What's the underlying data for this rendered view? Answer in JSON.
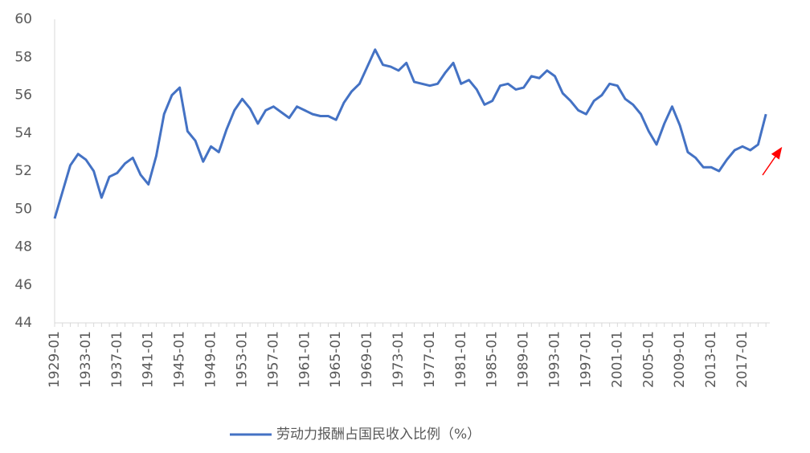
{
  "chart_data": {
    "type": "line",
    "categories": [
      "1929-01",
      null,
      null,
      null,
      "1933-01",
      null,
      null,
      null,
      "1937-01",
      null,
      null,
      null,
      "1941-01",
      null,
      null,
      null,
      "1945-01",
      null,
      null,
      null,
      "1949-01",
      null,
      null,
      null,
      "1953-01",
      null,
      null,
      null,
      "1957-01",
      null,
      null,
      null,
      "1961-01",
      null,
      null,
      null,
      "1965-01",
      null,
      null,
      null,
      "1969-01",
      null,
      null,
      null,
      "1973-01",
      null,
      null,
      null,
      "1977-01",
      null,
      null,
      null,
      "1981-01",
      null,
      null,
      null,
      "1985-01",
      null,
      null,
      null,
      "1989-01",
      null,
      null,
      null,
      "1993-01",
      null,
      null,
      null,
      "1997-01",
      null,
      null,
      null,
      "2001-01",
      null,
      null,
      null,
      "2005-01",
      null,
      null,
      null,
      "2009-01",
      null,
      null,
      null,
      "2013-01",
      null,
      null,
      null,
      "2017-01",
      null,
      null,
      null
    ],
    "series": [
      {
        "name": "劳动力报酬占国民收入比例（%）",
        "color": "#4472c4",
        "values": [
          49.5,
          50.9,
          52.3,
          52.9,
          52.6,
          52.0,
          50.6,
          51.7,
          51.9,
          52.4,
          52.7,
          51.8,
          51.3,
          52.8,
          55.0,
          56.0,
          56.4,
          54.1,
          53.6,
          52.5,
          53.3,
          53.0,
          54.2,
          55.2,
          55.8,
          55.3,
          54.5,
          55.2,
          55.4,
          55.1,
          54.8,
          55.4,
          55.2,
          55.0,
          54.9,
          54.9,
          54.7,
          55.6,
          56.2,
          56.6,
          57.5,
          58.4,
          57.6,
          57.5,
          57.3,
          57.7,
          56.7,
          56.6,
          56.5,
          56.6,
          57.2,
          57.7,
          56.6,
          56.8,
          56.3,
          55.5,
          55.7,
          56.5,
          56.6,
          56.3,
          56.4,
          57.0,
          56.9,
          57.3,
          57.0,
          56.1,
          55.7,
          55.2,
          55.0,
          55.7,
          56.0,
          56.6,
          56.5,
          55.8,
          55.5,
          55.0,
          54.1,
          53.4,
          54.5,
          55.4,
          54.4,
          53.0,
          52.7,
          52.2,
          52.2,
          52.0,
          52.6,
          53.1,
          53.3,
          53.1,
          53.4,
          55.0
        ]
      }
    ],
    "ylim": [
      44,
      60
    ],
    "yticks": [
      44,
      46,
      48,
      50,
      52,
      54,
      56,
      58,
      60
    ],
    "grid": false
  }
}
